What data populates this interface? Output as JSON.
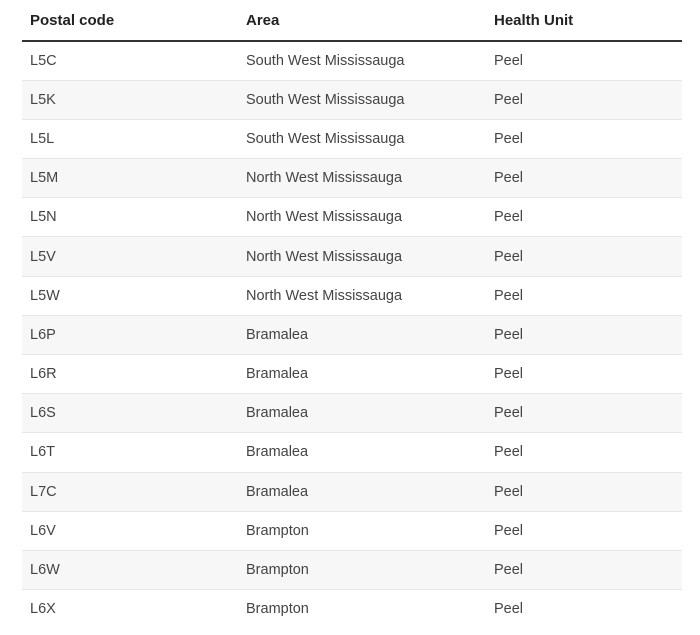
{
  "table": {
    "headers": [
      "Postal code",
      "Area",
      "Health Unit"
    ],
    "rows": [
      [
        "L5C",
        "South West Mississauga",
        "Peel"
      ],
      [
        "L5K",
        "South West Mississauga",
        "Peel"
      ],
      [
        "L5L",
        "South West Mississauga",
        "Peel"
      ],
      [
        "L5M",
        "North West Mississauga",
        "Peel"
      ],
      [
        "L5N",
        "North West Mississauga",
        "Peel"
      ],
      [
        "L5V",
        "North West Mississauga",
        "Peel"
      ],
      [
        "L5W",
        "North West Mississauga",
        "Peel"
      ],
      [
        "L6P",
        "Bramalea",
        "Peel"
      ],
      [
        "L6R",
        "Bramalea",
        "Peel"
      ],
      [
        "L6S",
        "Bramalea",
        "Peel"
      ],
      [
        "L6T",
        "Bramalea",
        "Peel"
      ],
      [
        "L7C",
        "Bramalea",
        "Peel"
      ],
      [
        "L6V",
        "Brampton",
        "Peel"
      ],
      [
        "L6W",
        "Brampton",
        "Peel"
      ],
      [
        "L6X",
        "Brampton",
        "Peel"
      ]
    ]
  }
}
